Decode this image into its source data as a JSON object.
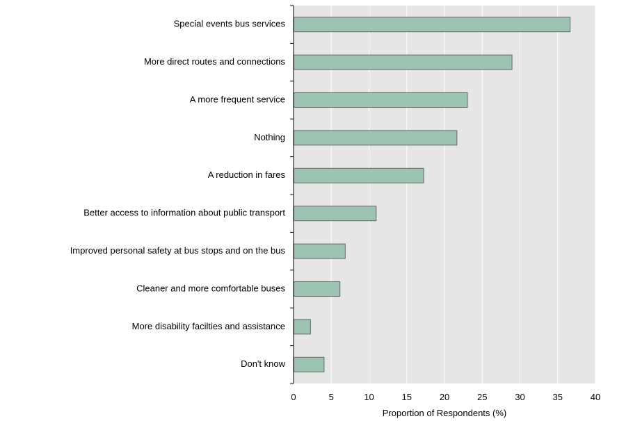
{
  "chart_data": {
    "type": "bar",
    "orientation": "horizontal",
    "title": "",
    "xlabel": "Proportion of Respondents (%)",
    "ylabel": "",
    "xlim": [
      0,
      40
    ],
    "xticks": [
      0,
      5,
      10,
      15,
      20,
      25,
      30,
      35,
      40
    ],
    "grid": true,
    "legend": "none",
    "categories": [
      "Special events bus services",
      "More direct routes and connections",
      "A more frequent service",
      "Nothing",
      "A reduction in fares",
      "Better access to information about public transport",
      "Improved personal safety at bus stops and on the bus",
      "Cleaner and more comfortable buses",
      "More disability facilties and assistance",
      "Don't know"
    ],
    "values": [
      36.6,
      28.9,
      23.0,
      21.6,
      17.2,
      10.9,
      6.8,
      6.1,
      2.2,
      4.0
    ],
    "colors": {
      "bar_fill": "#9dc4b2",
      "bar_stroke": "#666666",
      "plot_background": "#e6e6e6",
      "grid": "#ffffff",
      "axis": "#000000"
    }
  }
}
